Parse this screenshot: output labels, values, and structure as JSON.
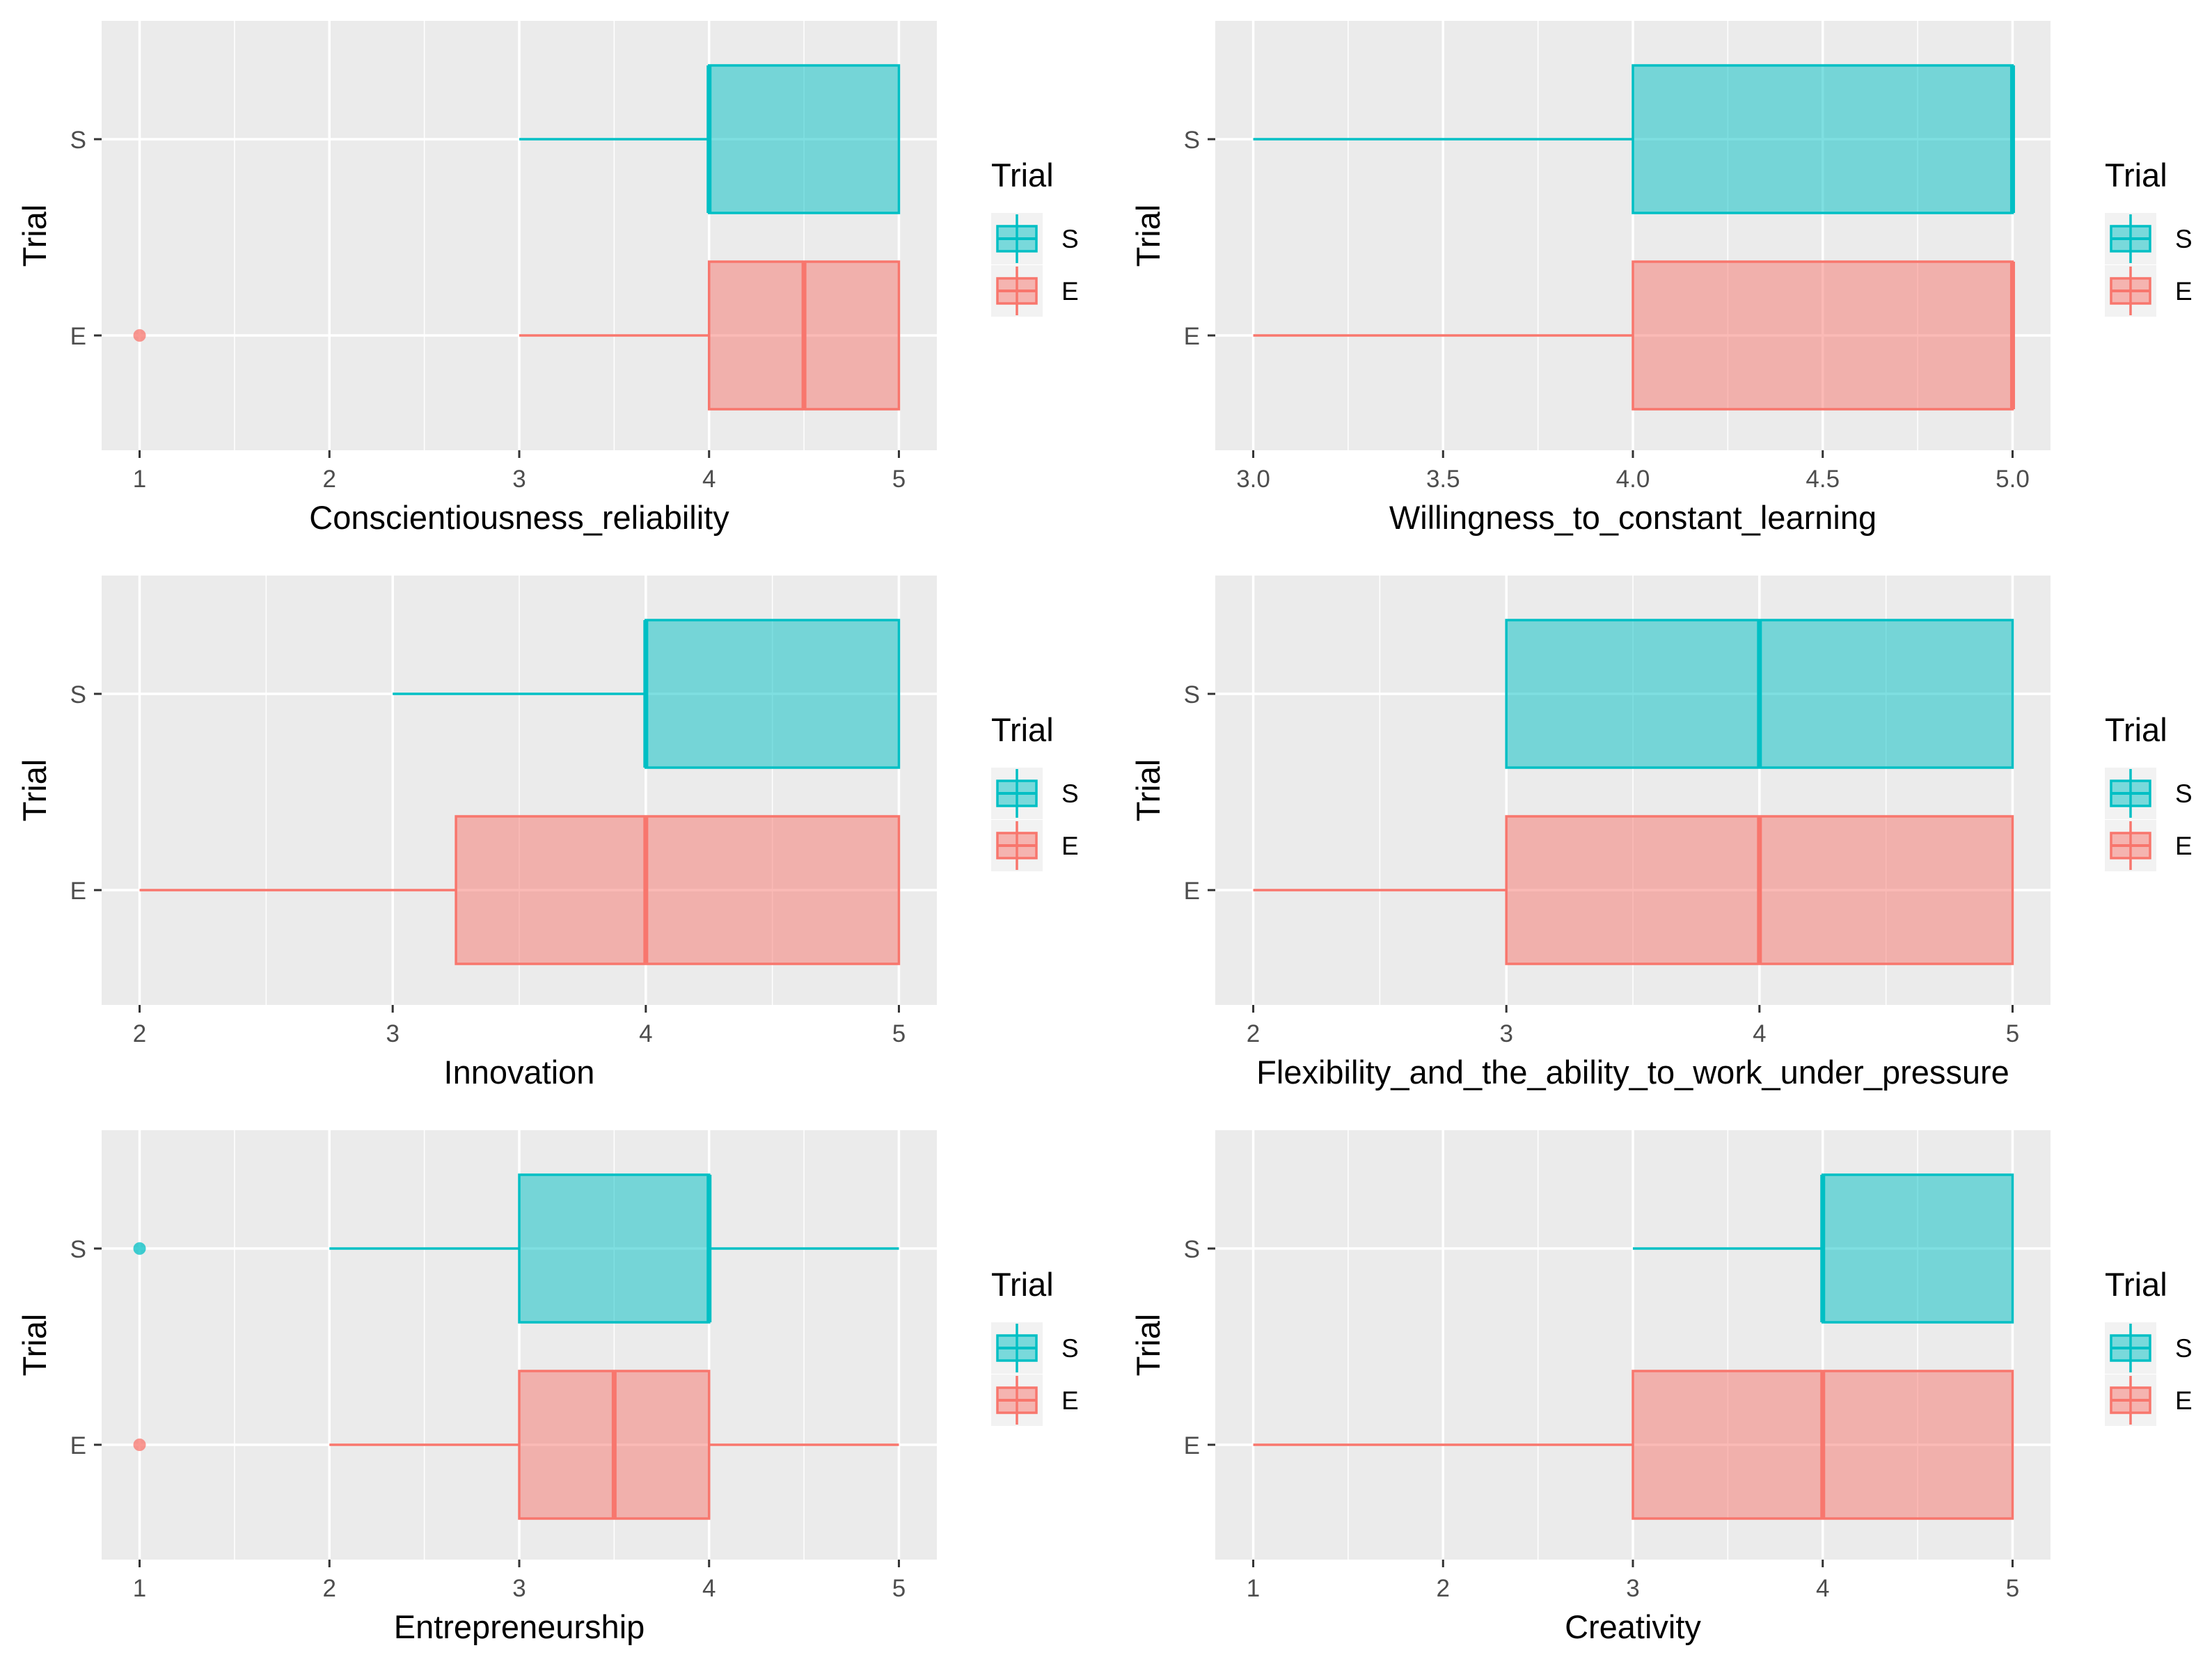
{
  "colors": {
    "S": "#00BFC4",
    "E": "#F8766D",
    "panel_bg": "#EBEBEB",
    "grid": "#FFFFFF"
  },
  "legend": {
    "title": "Trial",
    "entries": [
      "S",
      "E"
    ]
  },
  "chart_data": [
    {
      "type": "boxplot",
      "orientation": "horizontal",
      "xlabel": "Conscientiousness_reliability",
      "ylabel": "Trial",
      "xlim": [
        0.8,
        5.2
      ],
      "xticks": [
        1,
        2,
        3,
        4,
        5
      ],
      "xtick_labels": [
        "1",
        "2",
        "3",
        "4",
        "5"
      ],
      "xminor": [
        1.5,
        2.5,
        3.5,
        4.5
      ],
      "categories": [
        "E",
        "S"
      ],
      "series": [
        {
          "group": "S",
          "whisker_low": 3,
          "q1": 4,
          "median": 4,
          "q3": 5,
          "whisker_high": 5,
          "outliers": []
        },
        {
          "group": "E",
          "whisker_low": 3,
          "q1": 4,
          "median": 4.5,
          "q3": 5,
          "whisker_high": 5,
          "outliers": [
            1
          ]
        }
      ]
    },
    {
      "type": "boxplot",
      "orientation": "horizontal",
      "xlabel": "Willingness_to_constant_learning",
      "ylabel": "Trial",
      "xlim": [
        2.9,
        5.1
      ],
      "xticks": [
        3,
        3.5,
        4,
        4.5,
        5
      ],
      "xtick_labels": [
        "3.0",
        "3.5",
        "4.0",
        "4.5",
        "5.0"
      ],
      "xminor": [
        3.25,
        3.75,
        4.25,
        4.75
      ],
      "categories": [
        "E",
        "S"
      ],
      "series": [
        {
          "group": "S",
          "whisker_low": 3,
          "q1": 4,
          "median": 5,
          "q3": 5,
          "whisker_high": 5,
          "outliers": []
        },
        {
          "group": "E",
          "whisker_low": 3,
          "q1": 4,
          "median": 5,
          "q3": 5,
          "whisker_high": 5,
          "outliers": []
        }
      ]
    },
    {
      "type": "boxplot",
      "orientation": "horizontal",
      "xlabel": "Innovation",
      "ylabel": "Trial",
      "xlim": [
        1.85,
        5.15
      ],
      "xticks": [
        2,
        3,
        4,
        5
      ],
      "xtick_labels": [
        "2",
        "3",
        "4",
        "5"
      ],
      "xminor": [
        2.5,
        3.5,
        4.5
      ],
      "categories": [
        "E",
        "S"
      ],
      "series": [
        {
          "group": "S",
          "whisker_low": 3,
          "q1": 4,
          "median": 4,
          "q3": 5,
          "whisker_high": 5,
          "outliers": []
        },
        {
          "group": "E",
          "whisker_low": 2,
          "q1": 3.25,
          "median": 4,
          "q3": 5,
          "whisker_high": 5,
          "outliers": []
        }
      ]
    },
    {
      "type": "boxplot",
      "orientation": "horizontal",
      "xlabel": "Flexibility_and_the_ability_to_work_under_pressure",
      "ylabel": "Trial",
      "xlim": [
        1.85,
        5.15
      ],
      "xticks": [
        2,
        3,
        4,
        5
      ],
      "xtick_labels": [
        "2",
        "3",
        "4",
        "5"
      ],
      "xminor": [
        2.5,
        3.5,
        4.5
      ],
      "categories": [
        "E",
        "S"
      ],
      "series": [
        {
          "group": "S",
          "whisker_low": 3,
          "q1": 3,
          "median": 4,
          "q3": 5,
          "whisker_high": 5,
          "outliers": []
        },
        {
          "group": "E",
          "whisker_low": 2,
          "q1": 3,
          "median": 4,
          "q3": 5,
          "whisker_high": 5,
          "outliers": []
        }
      ]
    },
    {
      "type": "boxplot",
      "orientation": "horizontal",
      "xlabel": "Entrepreneurship",
      "ylabel": "Trial",
      "xlim": [
        0.8,
        5.2
      ],
      "xticks": [
        1,
        2,
        3,
        4,
        5
      ],
      "xtick_labels": [
        "1",
        "2",
        "3",
        "4",
        "5"
      ],
      "xminor": [
        1.5,
        2.5,
        3.5,
        4.5
      ],
      "categories": [
        "E",
        "S"
      ],
      "series": [
        {
          "group": "S",
          "whisker_low": 2,
          "q1": 3,
          "median": 4,
          "q3": 4,
          "whisker_high": 5,
          "outliers": [
            1
          ]
        },
        {
          "group": "E",
          "whisker_low": 2,
          "q1": 3,
          "median": 3.5,
          "q3": 4,
          "whisker_high": 5,
          "outliers": [
            1
          ]
        }
      ]
    },
    {
      "type": "boxplot",
      "orientation": "horizontal",
      "xlabel": "Creativity",
      "ylabel": "Trial",
      "xlim": [
        0.8,
        5.2
      ],
      "xticks": [
        1,
        2,
        3,
        4,
        5
      ],
      "xtick_labels": [
        "1",
        "2",
        "3",
        "4",
        "5"
      ],
      "xminor": [
        1.5,
        2.5,
        3.5,
        4.5
      ],
      "categories": [
        "E",
        "S"
      ],
      "series": [
        {
          "group": "S",
          "whisker_low": 3,
          "q1": 4,
          "median": 4,
          "q3": 5,
          "whisker_high": 5,
          "outliers": []
        },
        {
          "group": "E",
          "whisker_low": 1,
          "q1": 3,
          "median": 4,
          "q3": 5,
          "whisker_high": 5,
          "outliers": []
        }
      ]
    }
  ]
}
